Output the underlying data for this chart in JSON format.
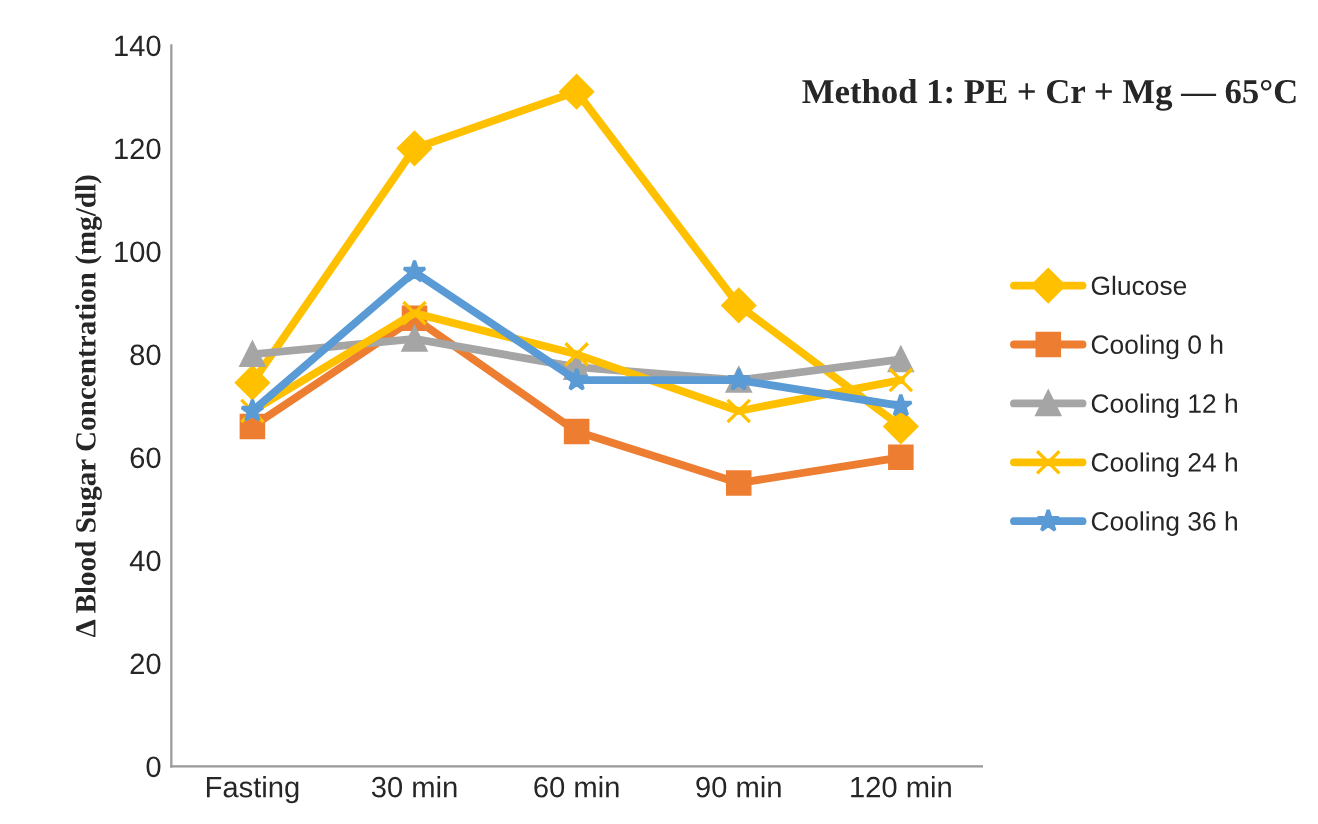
{
  "chart_data": {
    "type": "line",
    "title": "Method 1: PE + Cr + Mg — 65°C",
    "ylabel": "Δ Blood Sugar Concentration (mg/dl)",
    "categories": [
      "Fasting",
      "30 min",
      "60 min",
      "90 min",
      "120 min"
    ],
    "series": [
      {
        "name": "Glucose",
        "color": "#ffc000",
        "marker": "diamond",
        "values": [
          74.5,
          120,
          131,
          89.5,
          66
        ]
      },
      {
        "name": "Cooling 0 h",
        "color": "#ed7d31",
        "marker": "square",
        "values": [
          66,
          87,
          65,
          55,
          60
        ]
      },
      {
        "name": "Cooling 12 h",
        "color": "#a5a5a5",
        "marker": "triangle",
        "values": [
          80,
          83,
          77.5,
          75,
          79
        ]
      },
      {
        "name": "Cooling 24 h",
        "color": "#ffc000",
        "marker": "cross",
        "values": [
          69,
          88,
          80,
          69,
          75
        ]
      },
      {
        "name": "Cooling 36 h",
        "color": "#5b9bd5",
        "marker": "star",
        "values": [
          69,
          96,
          75,
          75,
          70
        ]
      }
    ],
    "ylim": [
      0,
      140
    ],
    "yticks": [
      0,
      20,
      40,
      60,
      80,
      100,
      120,
      140
    ],
    "grid": false,
    "legend": "right",
    "line_style": "solid"
  }
}
